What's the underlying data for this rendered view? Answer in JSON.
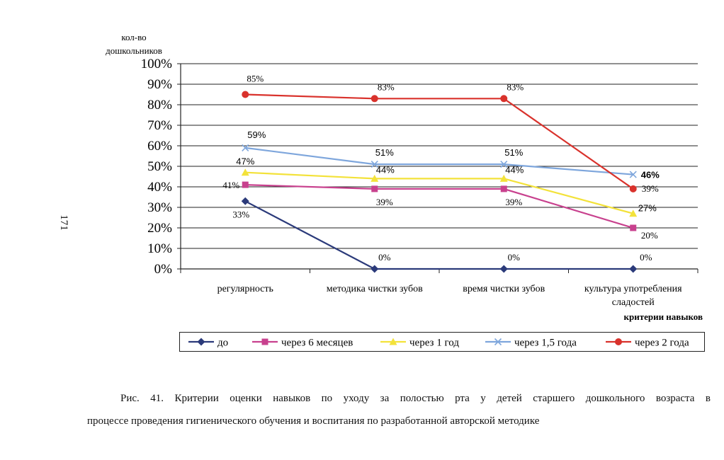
{
  "page_number": "171",
  "figure": {
    "caption_line1": "Рис. 41. Критерии оценки навыков по уходу за полостью рта у детей старшего дошкольного возраста в",
    "caption_line2": "процессе проведения гигиенического обучения и воспитания по разработанной авторской методике"
  },
  "chart_data": {
    "type": "line",
    "ylabel_line1": "кол-во",
    "ylabel_line2": "дошкольников",
    "xlabel": "критерии навыков",
    "ylim": [
      0,
      100
    ],
    "yticks": [
      "0%",
      "10%",
      "20%",
      "30%",
      "40%",
      "50%",
      "60%",
      "70%",
      "80%",
      "90%",
      "100%"
    ],
    "categories": [
      [
        "регулярность"
      ],
      [
        "методика чистки зубов"
      ],
      [
        "время чистки зубов"
      ],
      [
        "культура употребления",
        "сладостей"
      ]
    ],
    "grid": true,
    "legend_position": "bottom",
    "series": [
      {
        "name": "до",
        "color": "#2b3a7a",
        "marker": "diamond",
        "values": [
          33,
          0,
          0,
          0
        ],
        "labels": [
          "33%",
          "0%",
          "0%",
          "0%"
        ]
      },
      {
        "name": "через 6 месяцев",
        "color": "#c8418e",
        "marker": "square",
        "values": [
          41,
          39,
          39,
          20
        ],
        "labels": [
          "41%",
          "39%",
          "39%",
          "20%"
        ]
      },
      {
        "name": "через 1 год",
        "color": "#f3e23a",
        "marker": "triangle",
        "values": [
          47,
          44,
          44,
          27
        ],
        "labels": [
          "47%",
          "44%",
          "44%",
          "27%"
        ]
      },
      {
        "name": "через 1,5 года",
        "color": "#7ea6dc",
        "marker": "x",
        "values": [
          59,
          51,
          51,
          46
        ],
        "labels": [
          "59%",
          "51%",
          "51%",
          "46%"
        ]
      },
      {
        "name": "через 2 года",
        "color": "#d9322c",
        "marker": "circle",
        "values": [
          85,
          83,
          83,
          39
        ],
        "labels": [
          "85%",
          "83%",
          "83%",
          "39%"
        ]
      }
    ]
  }
}
